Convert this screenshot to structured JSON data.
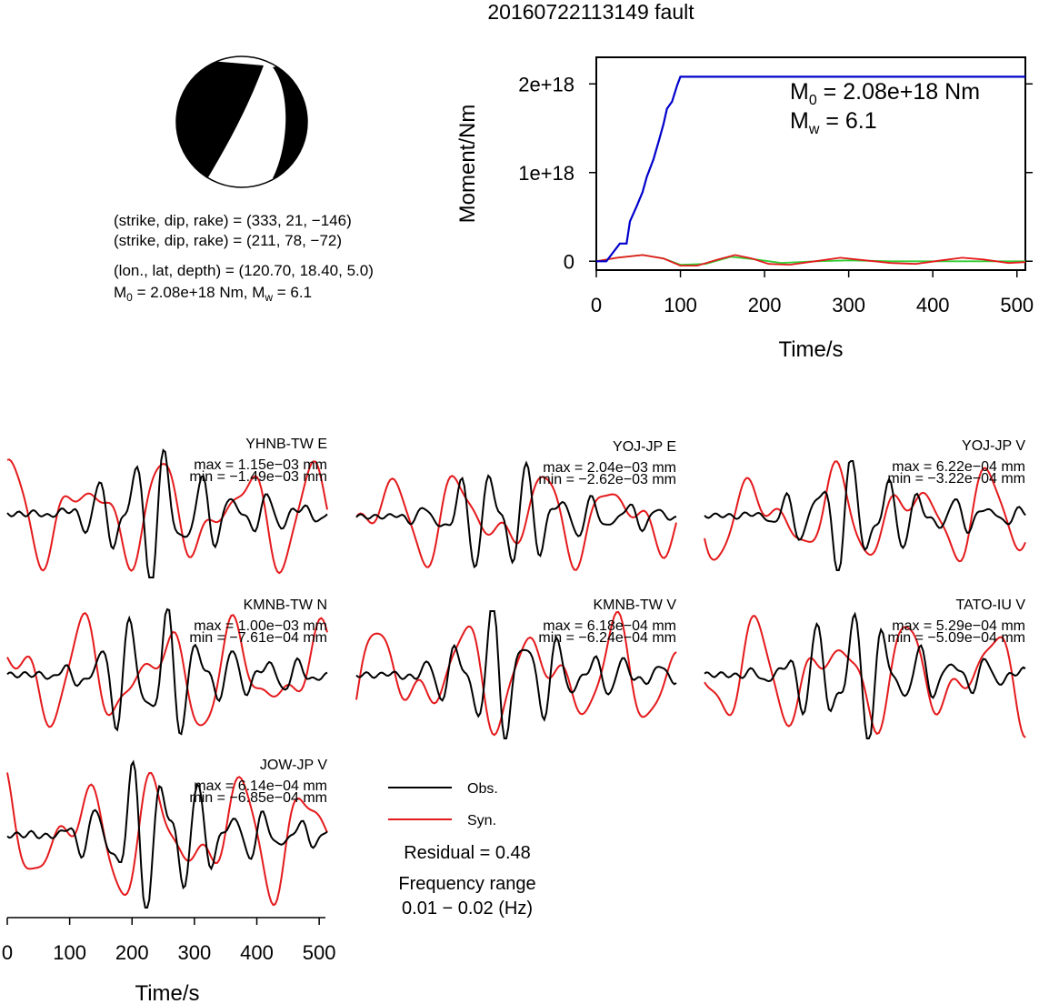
{
  "title": "20160722113149 fault",
  "mechanism": {
    "plane1": "(strike, dip, rake) = (333, 21, −146)",
    "plane2": "(strike, dip, rake) = (211, 78, −72)",
    "location": "(lon., lat, depth) = (120.70, 18.40, 5.0)",
    "moment_line": {
      "m0_base": "M",
      "m0_sub": "0",
      "m0_rest": " = 2.08e+18 Nm, M",
      "mw_sub": "w",
      "mw_rest": " = 6.1"
    }
  },
  "moment_plot": {
    "ylabel": "Moment/Nm",
    "xlabel": "Time/s",
    "xticks": [
      "0",
      "100",
      "200",
      "300",
      "400",
      "500"
    ],
    "yticks": [
      "0",
      "1e+18",
      "2e+18"
    ],
    "m0_annotation": {
      "base": "M",
      "sub": "0",
      "rest": " = 2.08e+18 Nm"
    },
    "mw_annotation": {
      "base": "M",
      "sub": "w",
      "rest": " = 6.1"
    }
  },
  "stations": [
    {
      "name": "YHNB-TW E",
      "max": "max = 1.15e−03 mm",
      "min": "min = −1.49e−03 mm"
    },
    {
      "name": "YOJ-JP E",
      "max": "max = 2.04e−03 mm",
      "min": "min = −2.62e−03 mm"
    },
    {
      "name": "YOJ-JP V",
      "max": "max = 6.22e−04 mm",
      "min": "min = −3.22e−04 mm"
    },
    {
      "name": "KMNB-TW N",
      "max": "max = 1.00e−03 mm",
      "min": "min = −7.61e−04 mm"
    },
    {
      "name": "KMNB-TW V",
      "max": "max = 6.18e−04 mm",
      "min": "min = −6.24e−04 mm"
    },
    {
      "name": "TATO-IU V",
      "max": "max = 5.29e−04 mm",
      "min": "min = −5.09e−04 mm"
    },
    {
      "name": "JOW-JP V",
      "max": "max = 6.14e−04 mm",
      "min": "min = −6.85e−04 mm"
    }
  ],
  "waveform_axis": {
    "xlabel": "Time/s",
    "xticks": [
      "0",
      "100",
      "200",
      "300",
      "400",
      "500"
    ]
  },
  "legend": {
    "obs": "Obs.",
    "syn": "Syn."
  },
  "residual": "Residual = 0.48",
  "freq_label": "Frequency range",
  "freq_value": "0.01 − 0.02 (Hz)",
  "colors": {
    "obs": "#000000",
    "syn": "#e41a1c",
    "moment": "#0000cc",
    "green": "#33cc33",
    "brown": "#8b6a3a"
  },
  "chart_data": [
    {
      "type": "line",
      "xlabel": "Time/s",
      "ylabel": "Moment/Nm",
      "xlim": [
        0,
        510
      ],
      "ylim": [
        -1e+17,
        2.3e+18
      ],
      "series": [
        {
          "x": [
            0,
            12,
            20,
            28,
            36,
            40,
            48,
            55,
            60,
            68,
            75,
            80,
            84,
            90,
            96,
            100,
            510
          ],
          "y": [
            0,
            0.0,
            1e+17,
            2e+17,
            2e+17,
            4.5e+17,
            6.2e+17,
            7.8e+17,
            9.5e+17,
            1.15e+18,
            1.38e+18,
            1.55e+18,
            1.72e+18,
            1.8e+18,
            1.98e+18,
            2.08e+18,
            2.08e+18
          ]
        },
        {
          "x": [
            0,
            25,
            55,
            80,
            100,
            120,
            145,
            165,
            185,
            205,
            230,
            260,
            290,
            320,
            350,
            380,
            410,
            435,
            460,
            490,
            510
          ],
          "y": [
            0.0,
            4e+16,
            7e+16,
            3e+16,
            -5e+16,
            -5e+16,
            2e+16,
            7e+16,
            3e+16,
            -3e+16,
            -4e+16,
            0.0,
            4e+16,
            1e+16,
            -2e+16,
            -3e+16,
            1e+16,
            4e+16,
            2e+16,
            -2e+16,
            -1e+16
          ]
        },
        {
          "x": [
            0,
            25,
            55,
            80,
            100,
            130,
            160,
            190,
            220,
            260,
            300,
            350,
            400,
            450,
            510
          ],
          "y": [
            0.0,
            4e+16,
            7e+16,
            3e+16,
            -4e+16,
            -3e+16,
            5e+16,
            2e+16,
            -2e+16,
            0.0,
            1e+16,
            0.0,
            0.0,
            0.0,
            0.0
          ]
        }
      ]
    }
  ]
}
